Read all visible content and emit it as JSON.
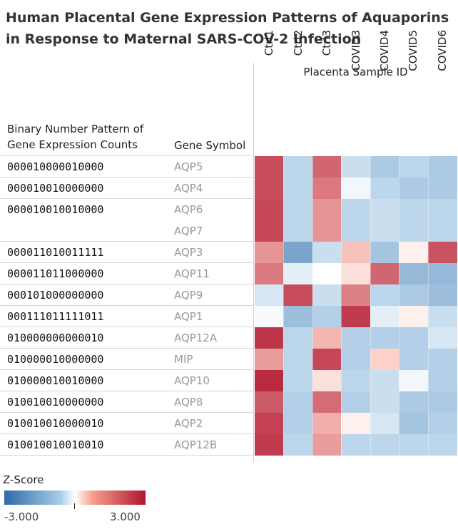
{
  "title": "Human Placental Gene Expression Patterns of Aquaporins in Response to Maternal SARS-COV-2 Infection",
  "header": {
    "sample_group": "Placenta Sample ID",
    "pattern_col": "Binary Number Pattern of Gene Expression Counts",
    "gene_col": "Gene Symbol"
  },
  "legend": {
    "title": "Z-Score",
    "min_label": "-3.000",
    "max_label": "3.000"
  },
  "colors": {
    "low": "#2e6aa8",
    "mid": "#ffffff",
    "high": "#b0142f"
  },
  "chart_data": {
    "type": "heatmap",
    "title": "Human Placental Gene Expression Patterns of Aquaporins in Response to Maternal SARS-COV-2 Infection",
    "columns": [
      "Ctrl1",
      "Ctrl2",
      "Ctrl3",
      "COVID3",
      "COVID4",
      "COVID5",
      "COVID6"
    ],
    "color_range": [
      -3.0,
      3.0
    ],
    "groups": [
      {
        "pattern": "000010000010000",
        "genes": [
          "AQP5"
        ],
        "values": [
          2.0,
          -0.5,
          1.6,
          -0.4,
          -0.7,
          -0.5,
          -0.7
        ]
      },
      {
        "pattern": "000010010000000",
        "genes": [
          "AQP4"
        ],
        "values": [
          2.0,
          -0.5,
          1.3,
          -0.1,
          -0.5,
          -0.7,
          -0.7
        ]
      },
      {
        "pattern": "000010010010000",
        "genes": [
          "AQP6",
          "AQP7"
        ],
        "values": [
          2.1,
          -0.5,
          0.9,
          -0.5,
          -0.4,
          -0.5,
          -0.5
        ]
      },
      {
        "pattern": "000011010011111",
        "genes": [
          "AQP3"
        ],
        "values": [
          0.9,
          -1.4,
          -0.4,
          0.4,
          -0.8,
          0.1,
          1.9
        ]
      },
      {
        "pattern": "000011011000000",
        "genes": [
          "AQP11"
        ],
        "values": [
          1.3,
          -0.2,
          0.0,
          0.2,
          1.6,
          -1.0,
          -1.0
        ]
      },
      {
        "pattern": "000101000000000",
        "genes": [
          "AQP9"
        ],
        "values": [
          -0.3,
          2.0,
          -0.4,
          1.2,
          -0.5,
          -0.7,
          -0.9
        ]
      },
      {
        "pattern": "000111011111011",
        "genes": [
          "AQP1"
        ],
        "values": [
          -0.05,
          -0.9,
          -0.6,
          2.3,
          -0.2,
          0.1,
          -0.4
        ]
      },
      {
        "pattern": "010000000000010",
        "genes": [
          "AQP12A"
        ],
        "values": [
          2.4,
          -0.5,
          0.5,
          -0.6,
          -0.6,
          -0.6,
          -0.3
        ]
      },
      {
        "pattern": "010000010000000",
        "genes": [
          "MIP"
        ],
        "values": [
          0.8,
          -0.5,
          2.1,
          -0.6,
          0.3,
          -0.6,
          -0.6
        ]
      },
      {
        "pattern": "010000010010000",
        "genes": [
          "AQP10"
        ],
        "values": [
          2.6,
          -0.5,
          0.2,
          -0.5,
          -0.4,
          -0.1,
          -0.6
        ]
      },
      {
        "pattern": "010010010000000",
        "genes": [
          "AQP8"
        ],
        "values": [
          1.8,
          -0.6,
          1.5,
          -0.6,
          -0.4,
          -0.7,
          -0.7
        ]
      },
      {
        "pattern": "010010010000010",
        "genes": [
          "AQP2"
        ],
        "values": [
          2.2,
          -0.6,
          0.6,
          0.1,
          -0.3,
          -0.8,
          -0.6
        ]
      },
      {
        "pattern": "010010010010010",
        "genes": [
          "AQP12B"
        ],
        "values": [
          2.3,
          -0.5,
          0.8,
          -0.5,
          -0.5,
          -0.5,
          -0.5
        ]
      }
    ]
  }
}
